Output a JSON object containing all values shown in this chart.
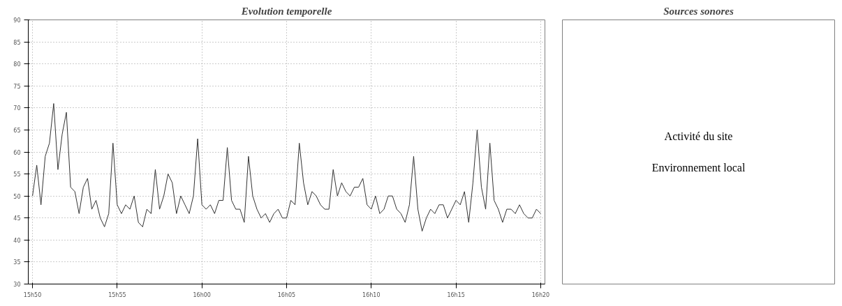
{
  "chart_data": [
    {
      "type": "line",
      "title": "Evolution temporelle",
      "grid": true,
      "line_style": "solid",
      "marker": "none",
      "ylim": [
        30,
        90
      ],
      "yticks": [
        30,
        35,
        40,
        45,
        50,
        55,
        60,
        65,
        70,
        75,
        80,
        85,
        90
      ],
      "categories": [
        "15h50",
        null,
        null,
        null,
        null,
        null,
        null,
        null,
        null,
        null,
        null,
        null,
        null,
        null,
        null,
        null,
        null,
        null,
        null,
        null,
        "15h55",
        null,
        null,
        null,
        null,
        null,
        null,
        null,
        null,
        null,
        null,
        null,
        null,
        null,
        null,
        null,
        null,
        null,
        null,
        null,
        "16h00",
        null,
        null,
        null,
        null,
        null,
        null,
        null,
        null,
        null,
        null,
        null,
        null,
        null,
        null,
        null,
        null,
        null,
        null,
        null,
        "16h05",
        null,
        null,
        null,
        null,
        null,
        null,
        null,
        null,
        null,
        null,
        null,
        null,
        null,
        null,
        null,
        null,
        null,
        null,
        null,
        "16h10",
        null,
        null,
        null,
        null,
        null,
        null,
        null,
        null,
        null,
        null,
        null,
        null,
        null,
        null,
        null,
        null,
        null,
        null,
        null,
        "16h15",
        null,
        null,
        null,
        null,
        null,
        null,
        null,
        null,
        null,
        null,
        null,
        null,
        null,
        null,
        null,
        null,
        null,
        null,
        null,
        "16h20"
      ],
      "series": [
        {
          "color": "#333333",
          "values": [
            50,
            57,
            48,
            59,
            62,
            71,
            56,
            64,
            69,
            52,
            51,
            46,
            52,
            54,
            47,
            49,
            45,
            43,
            46,
            62,
            48,
            46,
            48,
            47,
            50,
            44,
            43,
            47,
            46,
            56,
            47,
            50,
            55,
            53,
            46,
            50,
            48,
            46,
            50,
            63,
            48,
            47,
            48,
            46,
            49,
            49,
            61,
            49,
            47,
            47,
            44,
            59,
            50,
            47,
            45,
            46,
            44,
            46,
            47,
            45,
            45,
            49,
            48,
            62,
            53,
            48,
            51,
            50,
            48,
            47,
            47,
            56,
            50,
            53,
            51,
            50,
            52,
            52,
            54,
            48,
            47,
            50,
            46,
            47,
            50,
            50,
            47,
            46,
            44,
            48,
            59,
            47,
            42,
            45,
            47,
            46,
            48,
            48,
            45,
            47,
            49,
            48,
            51,
            44,
            53,
            65,
            52,
            47,
            62,
            49,
            47,
            44,
            47,
            47,
            46,
            48,
            46,
            45,
            45,
            47,
            46
          ]
        }
      ]
    },
    {
      "type": "other",
      "title": "Sources sonores",
      "annotations": [
        "Activité du site",
        "Environnement local"
      ]
    }
  ]
}
